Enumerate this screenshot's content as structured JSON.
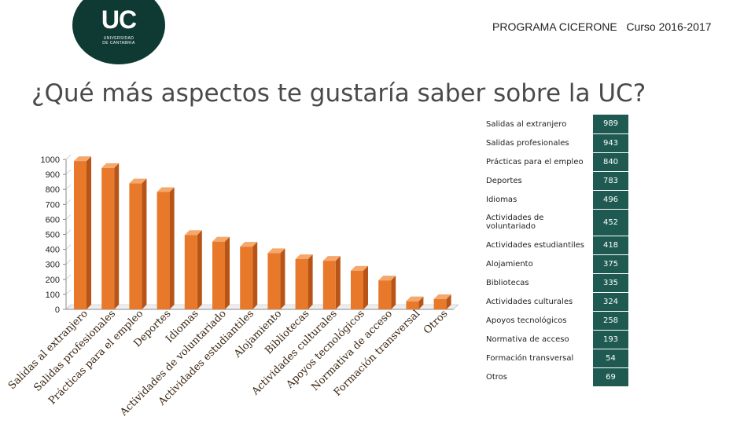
{
  "logo": {
    "text": "UC",
    "subtitle_line1": "UNIVERSIDAD",
    "subtitle_line2": "DE CANTABRIA"
  },
  "header": {
    "program": "PROGRAMA CICERONE   Curso 2016-2017"
  },
  "title": "¿Qué más aspectos te gustaría saber sobre la UC?",
  "colors": {
    "bar": "#e8792b",
    "bar_top": "#f5a86b",
    "bar_side": "#b85416",
    "axis": "#888888",
    "value_cell": "#1e5a51",
    "logo_bg": "#0f3a33"
  },
  "chart_data": {
    "type": "bar",
    "title": "¿Qué más aspectos te gustaría saber sobre la UC?",
    "categories": [
      "Salidas al extranjero",
      "Salidas profesionales",
      "Prácticas para el empleo",
      "Deportes",
      "Idiomas",
      "Actividades de voluntariado",
      "Actividades estudiantiles",
      "Alojamiento",
      "Bibliotecas",
      "Actividades culturales",
      "Apoyos tecnológicos",
      "Normativa de acceso",
      "Formación transversal",
      "Otros"
    ],
    "values": [
      989,
      943,
      840,
      783,
      496,
      452,
      418,
      375,
      335,
      324,
      258,
      193,
      54,
      69
    ],
    "ylim": [
      0,
      1000
    ],
    "yticks": [
      0,
      100,
      200,
      300,
      400,
      500,
      600,
      700,
      800,
      900,
      1000
    ],
    "ytick_labels": [
      "0",
      "100",
      "200",
      "300",
      "400",
      "500",
      "600",
      "700",
      "800",
      "900",
      "1000"
    ],
    "xlabel": "",
    "ylabel": "",
    "grid": false
  },
  "table": {
    "rows": [
      {
        "label": "Salidas al extranjero",
        "value": "989"
      },
      {
        "label": "Salidas profesionales",
        "value": "943"
      },
      {
        "label": "Prácticas para el empleo",
        "value": "840"
      },
      {
        "label": "Deportes",
        "value": "783"
      },
      {
        "label": "Idiomas",
        "value": "496"
      },
      {
        "label": "Actividades de voluntariado",
        "value": "452"
      },
      {
        "label": "Actividades estudiantiles",
        "value": "418"
      },
      {
        "label": "Alojamiento",
        "value": "375"
      },
      {
        "label": "Bibliotecas",
        "value": "335"
      },
      {
        "label": "Actividades culturales",
        "value": "324"
      },
      {
        "label": "Apoyos tecnológicos",
        "value": "258"
      },
      {
        "label": "Normativa de acceso",
        "value": "193"
      },
      {
        "label": "Formación transversal",
        "value": "54"
      },
      {
        "label": "Otros",
        "value": "69"
      }
    ]
  }
}
